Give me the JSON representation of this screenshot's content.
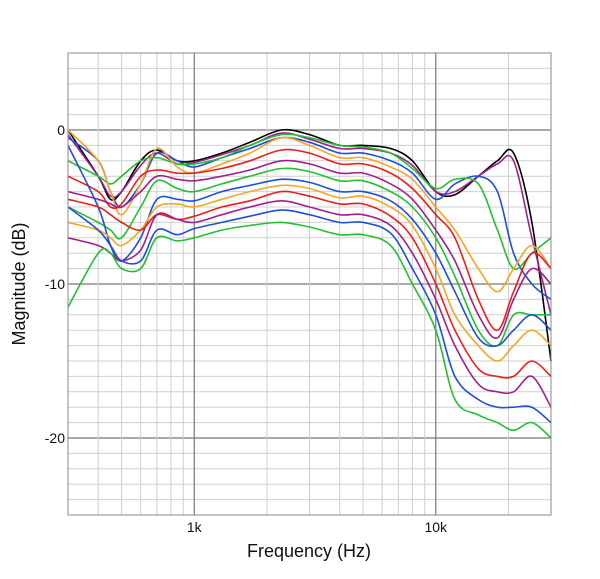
{
  "chart_data": {
    "type": "line",
    "title": "",
    "xlabel": "Frequency (Hz)",
    "ylabel": "Magnitude (dB)",
    "xscale": "log",
    "xlim": [
      300,
      30000
    ],
    "ylim": [
      -25,
      5
    ],
    "grid": true,
    "legend": "none",
    "x_ticks": [
      {
        "value": 1000,
        "label": "1k"
      },
      {
        "value": 10000,
        "label": "10k"
      }
    ],
    "y_ticks": [
      {
        "value": 0,
        "label": "0"
      },
      {
        "value": -10,
        "label": "-10"
      },
      {
        "value": -20,
        "label": "-20"
      }
    ],
    "x": [
      300,
      400,
      450,
      500,
      600,
      700,
      850,
      1000,
      1300,
      1700,
      2300,
      3000,
      4000,
      5000,
      6500,
      8000,
      10000,
      12000,
      15000,
      18000,
      21000,
      25000,
      30000
    ],
    "series": [
      {
        "name": "curve-1",
        "color": "#000000",
        "values": [
          0,
          -3,
          -4.5,
          -4,
          -2,
          -1.3,
          -2,
          -2,
          -1.5,
          -0.8,
          0,
          -0.3,
          -1,
          -1,
          -1.2,
          -2,
          -4,
          -4.2,
          -3,
          -2,
          -1.5,
          -6,
          -15
        ]
      },
      {
        "name": "curve-2",
        "color": "#a0208c",
        "values": [
          -0.3,
          -3,
          -4.3,
          -4,
          -2.3,
          -1.5,
          -2.2,
          -2.1,
          -1.6,
          -1,
          -0.2,
          -0.6,
          -1.2,
          -1.2,
          -1.5,
          -2.3,
          -4,
          -4,
          -3,
          -2.2,
          -2,
          -7,
          -12
        ]
      },
      {
        "name": "curve-3",
        "color": "#1f4fd8",
        "values": [
          -0.5,
          -2,
          -4,
          -5,
          -3.5,
          -1.5,
          -2,
          -2.4,
          -1.8,
          -1.2,
          -0.5,
          -0.8,
          -1.5,
          -1.5,
          -2,
          -2.8,
          -4.5,
          -3.5,
          -3,
          -4,
          -8,
          -10,
          -11
        ]
      },
      {
        "name": "curve-4",
        "color": "#22c032",
        "values": [
          -2,
          -3,
          -3.5,
          -3,
          -2,
          -1.8,
          -2.2,
          -2.2,
          -1.8,
          -1,
          -0.3,
          -0.5,
          -1,
          -1.1,
          -1.5,
          -2.5,
          -3.8,
          -3.2,
          -3.5,
          -6.5,
          -9,
          -8,
          -7
        ]
      },
      {
        "name": "curve-5",
        "color": "#f5a623",
        "values": [
          0,
          -2,
          -4,
          -5.5,
          -3.5,
          -1.2,
          -2.4,
          -2.8,
          -2.2,
          -1.5,
          -0.5,
          -1,
          -1.8,
          -1.8,
          -2.4,
          -3.2,
          -5,
          -6.5,
          -9,
          -10.5,
          -9,
          -7.5,
          -9
        ]
      },
      {
        "name": "curve-6",
        "color": "#e8201c",
        "values": [
          -3,
          -4,
          -5,
          -4.8,
          -3,
          -2.6,
          -2.8,
          -2.8,
          -2.5,
          -2,
          -1.3,
          -1.5,
          -2.2,
          -2.2,
          -2.8,
          -3.8,
          -5.5,
          -7,
          -11,
          -13,
          -10.5,
          -8,
          -9
        ]
      },
      {
        "name": "curve-7",
        "color": "#a0208c",
        "values": [
          -4,
          -4.5,
          -4.8,
          -5,
          -4,
          -3,
          -3.2,
          -3.3,
          -3,
          -2.6,
          -2,
          -2.2,
          -2.8,
          -2.8,
          -3.5,
          -4.5,
          -6.5,
          -8.5,
          -12,
          -13.5,
          -11,
          -9,
          -10
        ]
      },
      {
        "name": "curve-8",
        "color": "#22c032",
        "values": [
          -5,
          -6,
          -6.5,
          -7,
          -5,
          -3.3,
          -3.8,
          -4,
          -3.5,
          -3,
          -2.5,
          -2.7,
          -3.3,
          -3.3,
          -4,
          -5,
          -7,
          -9.5,
          -13,
          -14,
          -12,
          -12,
          -12
        ]
      },
      {
        "name": "curve-9",
        "color": "#1f4fd8",
        "values": [
          -1,
          -5,
          -7.5,
          -8.5,
          -7,
          -4.5,
          -4.5,
          -4.6,
          -4,
          -3.6,
          -3.2,
          -3.4,
          -4,
          -4,
          -4.6,
          -5.8,
          -8,
          -10.5,
          -13.5,
          -14,
          -13,
          -12,
          -13
        ]
      },
      {
        "name": "curve-10",
        "color": "#f5a623",
        "values": [
          -6,
          -6.5,
          -7,
          -7.5,
          -6.5,
          -5,
          -4.8,
          -5,
          -4.5,
          -4,
          -3.6,
          -3.8,
          -4.4,
          -4.3,
          -5,
          -6.2,
          -9,
          -12,
          -14,
          -15,
          -14,
          -13,
          -14
        ]
      },
      {
        "name": "curve-11",
        "color": "#e8201c",
        "values": [
          -4.5,
          -5,
          -5.5,
          -6,
          -6.5,
          -5.5,
          -5.8,
          -5.6,
          -5,
          -4.6,
          -4,
          -4.3,
          -4.8,
          -4.8,
          -5.6,
          -7,
          -10,
          -13,
          -15.5,
          -16,
          -16,
          -15,
          -16
        ]
      },
      {
        "name": "curve-12",
        "color": "#a0208c",
        "values": [
          -7,
          -7.5,
          -8,
          -8.5,
          -7.8,
          -5.5,
          -5.8,
          -6,
          -5.5,
          -5,
          -4.6,
          -5,
          -5.5,
          -5.5,
          -6.2,
          -8,
          -11,
          -14,
          -16.5,
          -17,
          -17,
          -16,
          -18
        ]
      },
      {
        "name": "curve-13",
        "color": "#1f4fd8",
        "values": [
          -5,
          -6.5,
          -7.5,
          -8.5,
          -8.5,
          -6.5,
          -6.8,
          -6.4,
          -6,
          -5.6,
          -5.2,
          -5.5,
          -6,
          -6,
          -6.7,
          -9,
          -12,
          -16,
          -17.5,
          -18,
          -18,
          -18,
          -19
        ]
      },
      {
        "name": "curve-14",
        "color": "#22c032",
        "values": [
          -11.5,
          -8,
          -8,
          -9,
          -9,
          -7,
          -7.2,
          -7,
          -6.5,
          -6.2,
          -6,
          -6.3,
          -6.8,
          -6.8,
          -7.5,
          -10,
          -13,
          -17.5,
          -18.5,
          -19,
          -19.5,
          -19,
          -20
        ]
      }
    ]
  }
}
